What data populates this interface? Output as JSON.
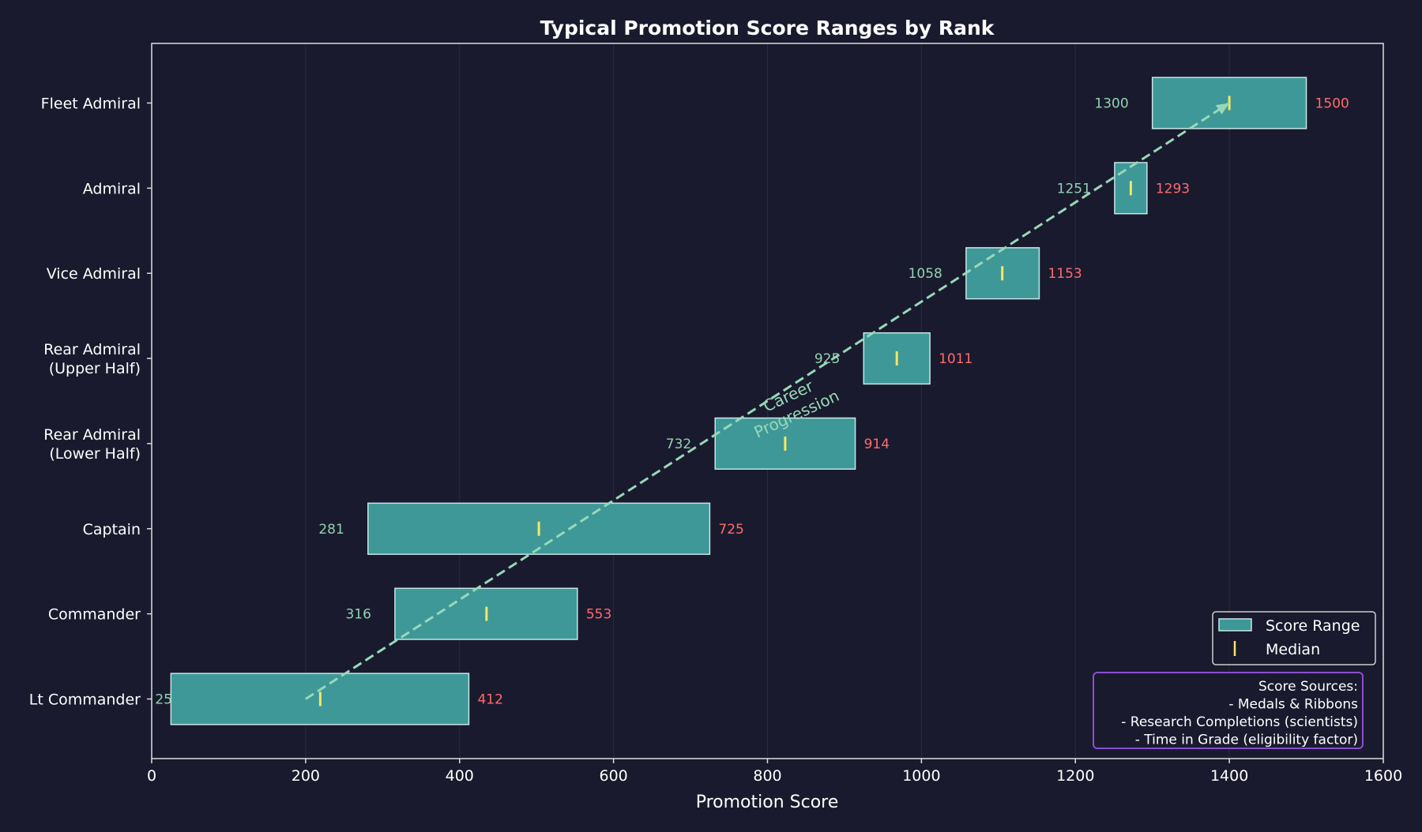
{
  "chart_data": {
    "type": "bar",
    "orientation": "horizontal-floating",
    "title": "Typical Promotion Score Ranges by Rank",
    "xlabel": "Promotion Score",
    "ylabel": "",
    "xlim": [
      0,
      1600
    ],
    "xticks": [
      0,
      200,
      400,
      600,
      800,
      1000,
      1200,
      1400,
      1600
    ],
    "grid": "vertical",
    "categories": [
      "Lt Commander",
      "Commander",
      "Captain",
      "Rear Admiral\n(Lower Half)",
      "Rear Admiral\n(Upper Half)",
      "Vice Admiral",
      "Admiral",
      "Fleet Admiral"
    ],
    "series": [
      {
        "name": "Score Range",
        "min": [
          25,
          316,
          281,
          732,
          925,
          1058,
          1251,
          1300
        ],
        "max": [
          412,
          553,
          725,
          914,
          1011,
          1153,
          1293,
          1500
        ]
      },
      {
        "name": "Median",
        "values": [
          219,
          435,
          503,
          823,
          968,
          1105,
          1272,
          1400
        ]
      }
    ],
    "annotation": {
      "text": "Career\nProgression",
      "arrow_from": [
        200,
        "Lt Commander"
      ],
      "arrow_to": [
        1400,
        "Fleet Admiral"
      ]
    },
    "info_box": {
      "lines": [
        "Score Sources:",
        "- Medals & Ribbons",
        "- Research Completions (scientists)",
        "- Time in Grade (eligibility factor)"
      ]
    },
    "legend": {
      "placement": "bottom-right",
      "entries": [
        "Score Range",
        "Median"
      ]
    },
    "colors": {
      "background": "#1a1a2e",
      "bar": "#3e9898",
      "bar_edge": "#c8e6e6",
      "median": "#f5e663",
      "min_label": "#8fd4b0",
      "max_label": "#ff6b6b",
      "arrow": "#98d8b8",
      "info_border": "#8a4fd0",
      "text": "#ffffff"
    }
  }
}
